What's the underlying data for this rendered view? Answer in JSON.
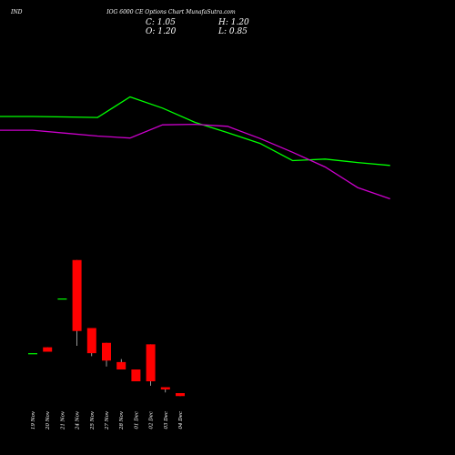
{
  "header": {
    "symbol": "IND",
    "title": "IOG 6000  CE Options  Chart MunafaSutra.com",
    "close": "C: 1.05",
    "open": "O: 1.20",
    "high": "H: 1.20",
    "low": "L: 0.85"
  },
  "colors": {
    "background": "#000000",
    "up": "#00ff00",
    "down": "#ff0000",
    "ma_short": "#00ff00",
    "ma_long": "#cc00cc",
    "text": "#ffffff"
  },
  "chart_data": {
    "type": "candlestick",
    "categories": [
      "19 Nov",
      "20 Nov",
      "21 Nov",
      "24 Nov",
      "25 Nov",
      "27 Nov",
      "28 Nov",
      "01 Dec",
      "02 Dec",
      "03 Dec",
      "04 Dec"
    ],
    "ohlc": [
      {
        "open": 3.5,
        "high": 3.5,
        "low": 3.5,
        "close": 3.5
      },
      {
        "open": 3.9,
        "high": 3.9,
        "low": 3.6,
        "close": 3.6
      },
      {
        "open": 7.2,
        "high": 7.2,
        "low": 7.2,
        "close": 7.2
      },
      {
        "open": 9.8,
        "high": 9.8,
        "low": 4.0,
        "close": 5.0
      },
      {
        "open": 5.2,
        "high": 5.2,
        "low": 3.3,
        "close": 3.5
      },
      {
        "open": 4.2,
        "high": 4.2,
        "low": 2.6,
        "close": 3.0
      },
      {
        "open": 2.9,
        "high": 3.1,
        "low": 2.4,
        "close": 2.4
      },
      {
        "open": 2.4,
        "high": 2.4,
        "low": 1.6,
        "close": 1.6
      },
      {
        "open": 4.1,
        "high": 4.1,
        "low": 1.3,
        "close": 1.6
      },
      {
        "open": 1.2,
        "high": 1.2,
        "low": 0.85,
        "close": 1.05
      },
      {
        "open": 0.8,
        "high": 0.8,
        "low": 0.6,
        "close": 0.6
      }
    ],
    "ma_short": [
      358,
      358,
      357,
      356,
      398,
      375,
      346,
      325,
      303,
      268,
      271,
      264,
      258
    ],
    "ma_long": [
      330,
      330,
      324,
      318,
      314,
      341,
      342,
      338,
      313,
      285,
      255,
      213,
      190
    ],
    "ylim": [
      0,
      12
    ],
    "grid": false
  }
}
